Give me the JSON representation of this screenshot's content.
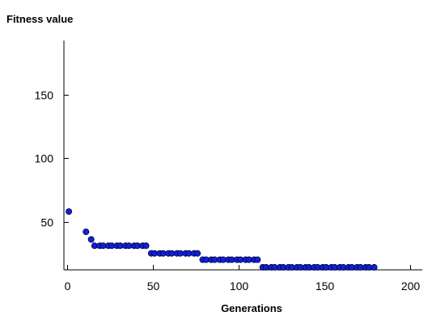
{
  "chart_data": {
    "type": "scatter",
    "title": "",
    "xlabel": "Generations",
    "ylabel": "Fitness value",
    "xlim": [
      0,
      200
    ],
    "ylim": [
      12,
      195
    ],
    "x_ticks": [
      0,
      50,
      100,
      150,
      200
    ],
    "y_ticks": [
      50,
      100,
      150
    ],
    "grid": false,
    "legend": "none",
    "marker_color": "#1020d8",
    "marker_edge_color": "#00003a",
    "series": [
      {
        "x": [
          1,
          11,
          14,
          16,
          19,
          21,
          24,
          26,
          29,
          31,
          34,
          36,
          39,
          41,
          44,
          46,
          49,
          51,
          54,
          56,
          59,
          61,
          64,
          66,
          69,
          71,
          74,
          76,
          79,
          81,
          84,
          86,
          89,
          91,
          94,
          96,
          99,
          101,
          104,
          106,
          109,
          111,
          114,
          116,
          119,
          121,
          124,
          126,
          129,
          131,
          134,
          136,
          139,
          141,
          144,
          146,
          149,
          151,
          154,
          156,
          159,
          161,
          164,
          166,
          169,
          171,
          174,
          176,
          179
        ],
        "y": [
          58,
          42,
          36,
          31,
          31,
          31,
          31,
          31,
          31,
          31,
          31,
          31,
          31,
          31,
          31,
          31,
          25,
          25,
          25,
          25,
          25,
          25,
          25,
          25,
          25,
          25,
          25,
          25,
          20,
          20,
          20,
          20,
          20,
          20,
          20,
          20,
          20,
          20,
          20,
          20,
          20,
          20,
          14,
          14,
          14,
          14,
          14,
          14,
          14,
          14,
          14,
          14,
          14,
          14,
          14,
          14,
          14,
          14,
          14,
          14,
          14,
          14,
          14,
          14,
          14,
          14,
          14,
          14,
          14
        ]
      }
    ]
  }
}
